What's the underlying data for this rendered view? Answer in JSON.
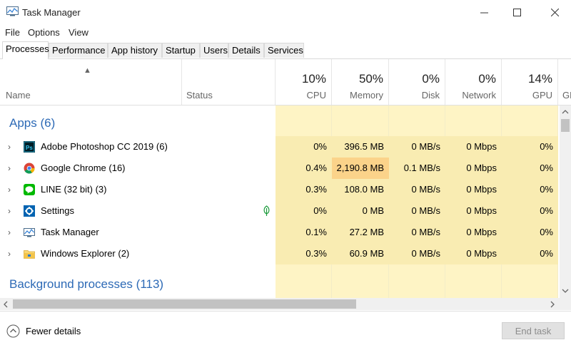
{
  "window": {
    "title": "Task Manager"
  },
  "menu": [
    "File",
    "Options",
    "View"
  ],
  "tabs": [
    "Processes",
    "Performance",
    "App history",
    "Startup",
    "Users",
    "Details",
    "Services"
  ],
  "columns": {
    "name": "Name",
    "status": "Status",
    "cpu": {
      "pct": "10%",
      "label": "CPU"
    },
    "memory": {
      "pct": "50%",
      "label": "Memory"
    },
    "disk": {
      "pct": "0%",
      "label": "Disk"
    },
    "network": {
      "pct": "0%",
      "label": "Network"
    },
    "gpu": {
      "pct": "14%",
      "label": "GPU"
    },
    "gpu_engine_partial": "GP"
  },
  "groups": {
    "apps": "Apps (6)",
    "background": "Background processes (113)"
  },
  "apps": [
    {
      "name": "Adobe Photoshop CC 2019 (6)",
      "icon": "photoshop-icon",
      "cpu": "0%",
      "memory": "396.5 MB",
      "disk": "0 MB/s",
      "network": "0 Mbps",
      "gpu": "0%"
    },
    {
      "name": "Google Chrome (16)",
      "icon": "chrome-icon",
      "cpu": "0.4%",
      "memory": "2,190.8 MB",
      "disk": "0.1 MB/s",
      "network": "0 Mbps",
      "gpu": "0%"
    },
    {
      "name": "LINE (32 bit) (3)",
      "icon": "line-icon",
      "cpu": "0.3%",
      "memory": "108.0 MB",
      "disk": "0 MB/s",
      "network": "0 Mbps",
      "gpu": "0%"
    },
    {
      "name": "Settings",
      "icon": "settings-icon",
      "cpu": "0%",
      "memory": "0 MB",
      "disk": "0 MB/s",
      "network": "0 Mbps",
      "gpu": "0%"
    },
    {
      "name": "Task Manager",
      "icon": "task-manager-icon",
      "cpu": "0.1%",
      "memory": "27.2 MB",
      "disk": "0 MB/s",
      "network": "0 Mbps",
      "gpu": "0%"
    },
    {
      "name": "Windows Explorer (2)",
      "icon": "folder-icon",
      "cpu": "0.3%",
      "memory": "60.9 MB",
      "disk": "0 MB/s",
      "network": "0 Mbps",
      "gpu": "0%"
    }
  ],
  "footer": {
    "fewer_details": "Fewer details",
    "end_task": "End task"
  },
  "colors": {
    "accent": "#2d6ab6",
    "heat_low": "#fef4c5",
    "heat_mid": "#f9ecb2",
    "heat_high": "#fbd38a"
  }
}
